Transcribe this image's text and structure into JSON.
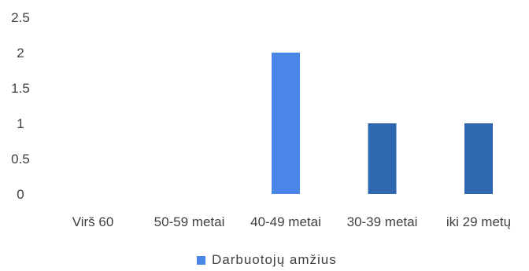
{
  "chart_data": {
    "type": "bar",
    "categories": [
      "Virš 60",
      "50-59 metai",
      "40-49 metai",
      "30-39 metai",
      "iki 29 metų"
    ],
    "series": [
      {
        "name": "Darbuotojų amžius",
        "values": [
          0,
          0,
          2,
          1,
          1
        ]
      }
    ],
    "bar_colors": [
      "#4a86e8",
      "#4a86e8",
      "#4a86e8",
      "#2f67b0",
      "#2f67b0"
    ],
    "yticks": [
      "0",
      "0.5",
      "1",
      "1.5",
      "2",
      "2.5"
    ],
    "ylim": [
      0,
      2.5
    ],
    "grid": false,
    "legend_position": "bottom",
    "title": "",
    "xlabel": "",
    "ylabel": ""
  }
}
